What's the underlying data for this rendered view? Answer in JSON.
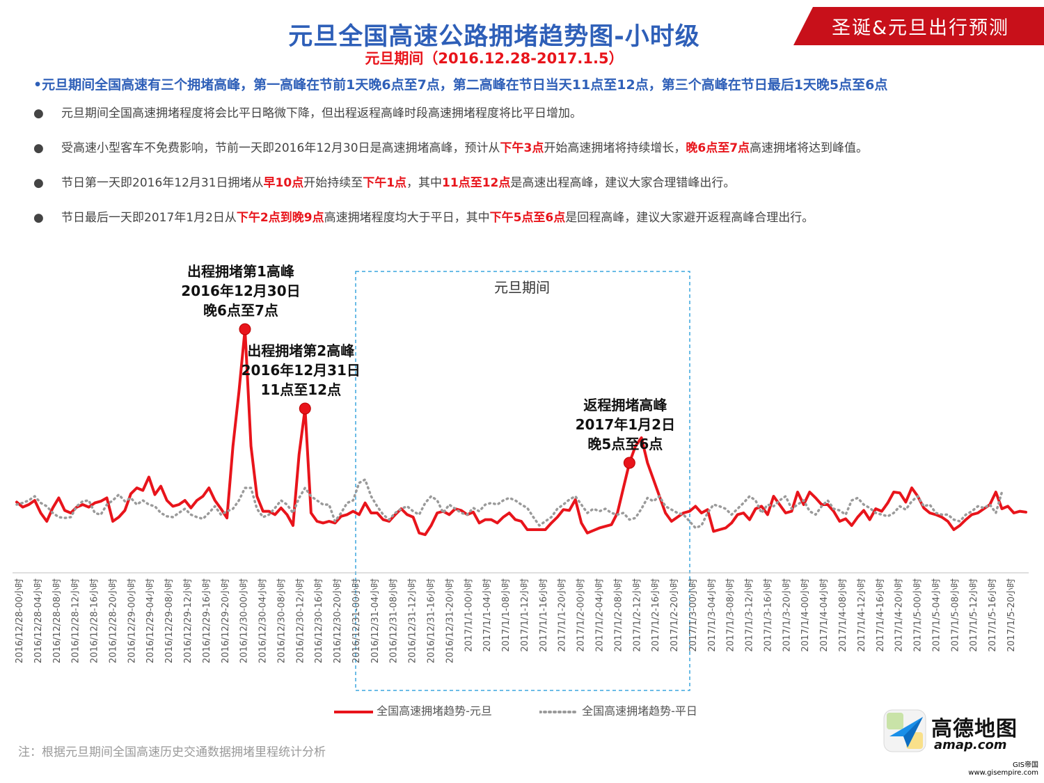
{
  "header": {
    "title": "元旦全国高速公路拥堵趋势图-小时级",
    "subtitle": "元旦期间（2016.12.28-2017.1.5）",
    "banner": "圣诞&元旦出行预测",
    "banner_color": "#c8101a"
  },
  "headline": "•元旦期间全国高速有三个拥堵高峰，第一高峰在节前1天晚6点至7点，第二高峰在节日当天11点至12点，第三个高峰在节日最后1天晚5点至6点",
  "bullets": [
    {
      "dot": "●",
      "segments": [
        {
          "text": "元旦期间全国高速拥堵程度将会比平日略微下降，但出程返程高峰时段高速拥堵程度将比平日增加。",
          "hl": false
        }
      ]
    },
    {
      "dot": "●",
      "segments": [
        {
          "text": "受高速小型客车不免费影响，节前一天即2016年12月30日是高速拥堵高峰，预计从",
          "hl": false
        },
        {
          "text": "下午3点",
          "hl": true
        },
        {
          "text": "开始高速拥堵将持续增长，",
          "hl": false
        },
        {
          "text": "晚6点至7点",
          "hl": true
        },
        {
          "text": "高速拥堵将达到峰值。",
          "hl": false
        }
      ]
    },
    {
      "dot": "●",
      "segments": [
        {
          "text": "节日第一天即2016年12月31日拥堵从",
          "hl": false
        },
        {
          "text": "早10点",
          "hl": true
        },
        {
          "text": "开始持续至",
          "hl": false
        },
        {
          "text": "下午1点",
          "hl": true
        },
        {
          "text": "，其中",
          "hl": false
        },
        {
          "text": "11点至12点",
          "hl": true
        },
        {
          "text": "是高速出程高峰，建议大家合理错峰出行。",
          "hl": false
        }
      ]
    },
    {
      "dot": "●",
      "segments": [
        {
          "text": "节日最后一天即2017年1月2日从",
          "hl": false
        },
        {
          "text": "下午2点到晚9点",
          "hl": true
        },
        {
          "text": "高速拥堵程度均大于平日，其中",
          "hl": false
        },
        {
          "text": "下午5点至6点",
          "hl": true
        },
        {
          "text": "是回程高峰，建议大家避开返程高峰合理出行。",
          "hl": false
        }
      ]
    }
  ],
  "chart_data": {
    "type": "line",
    "x_labels": [
      "2016/12/28-00小时",
      "2016/12/28-04小时",
      "2016/12/28-08小时",
      "2016/12/28-12小时",
      "2016/12/28-16小时",
      "2016/12/28-20小时",
      "2016/12/29-00小时",
      "2016/12/29-04小时",
      "2016/12/29-08小时",
      "2016/12/29-12小时",
      "2016/12/29-16小时",
      "2016/12/29-20小时",
      "2016/12/30-00小时",
      "2016/12/30-04小时",
      "2016/12/30-08小时",
      "2016/12/30-12小时",
      "2016/12/30-16小时",
      "2016/12/30-20小时",
      "2016/12/31-00小时",
      "2016/12/31-04小时",
      "2016/12/31-08小时",
      "2016/12/31-12小时",
      "2016/12/31-16小时",
      "2016/12/31-20小时",
      "2017/1/1-00小时",
      "2017/1/1-04小时",
      "2017/1/1-08小时",
      "2017/1/1-12小时",
      "2017/1/1-16小时",
      "2017/1/1-20小时",
      "2017/1/2-00小时",
      "2017/1/2-04小时",
      "2017/1/2-08小时",
      "2017/1/2-12小时",
      "2017/1/2-16小时",
      "2017/1/2-20小时",
      "2017/1/3-00小时",
      "2017/1/3-04小时",
      "2017/1/3-08小时",
      "2017/1/3-12小时",
      "2017/1/3-16小时",
      "2017/1/3-20小时",
      "2017/1/4-00小时",
      "2017/1/4-04小时",
      "2017/1/4-08小时",
      "2017/1/4-12小时",
      "2017/1/4-16小时",
      "2017/1/4-20小时",
      "2017/1/5-00小时",
      "2017/1/5-04小时",
      "2017/1/5-08小时",
      "2017/1/5-12小时",
      "2017/1/5-16小时",
      "2017/1/5-20小时"
    ],
    "series": [
      {
        "name": "全国高速拥堵趋势-元旦",
        "color": "#e8141b",
        "style": "solid",
        "values": [
          43,
          37,
          40,
          45,
          30,
          20,
          36,
          48,
          33,
          30,
          37,
          40,
          37,
          42,
          44,
          48,
          20,
          25,
          33,
          53,
          60,
          57,
          73,
          52,
          62,
          45,
          38,
          40,
          45,
          36,
          45,
          50,
          60,
          45,
          35,
          24,
          110,
          175,
          250,
          110,
          50,
          32,
          32,
          28,
          36,
          28,
          15,
          100,
          155,
          30,
          20,
          18,
          20,
          18,
          26,
          28,
          32,
          28,
          42,
          30,
          30,
          22,
          20,
          28,
          35,
          28,
          25,
          6,
          4,
          15,
          30,
          32,
          28,
          35,
          33,
          28,
          31,
          18,
          22,
          22,
          18,
          25,
          30,
          22,
          20,
          10,
          10,
          10,
          10,
          18,
          25,
          34,
          33,
          46,
          18,
          6,
          9,
          12,
          14,
          16,
          30,
          60,
          90,
          110,
          120,
          90,
          70,
          50,
          30,
          20,
          25,
          30,
          32,
          38,
          30,
          34,
          8,
          10,
          12,
          18,
          28,
          30,
          22,
          35,
          38,
          28,
          50,
          40,
          30,
          32,
          55,
          40,
          55,
          48,
          40,
          40,
          32,
          20,
          23,
          15,
          25,
          33,
          22,
          35,
          32,
          42,
          55,
          54,
          43,
          60,
          50,
          36,
          30,
          28,
          25,
          20,
          10,
          15,
          22,
          28,
          30,
          35,
          40,
          55,
          35,
          38,
          30,
          32,
          31
        ]
      },
      {
        "name": "全国高速拥堵趋势-平日",
        "color": "#9a9a9a",
        "style": "dotted",
        "values": [
          40,
          42,
          45,
          50,
          42,
          38,
          30,
          25,
          24,
          25,
          38,
          44,
          45,
          30,
          28,
          40,
          45,
          52,
          44,
          48,
          40,
          45,
          40,
          38,
          30,
          26,
          25,
          30,
          35,
          28,
          25,
          23,
          30,
          38,
          28,
          32,
          35,
          45,
          60,
          60,
          35,
          25,
          28,
          36,
          45,
          40,
          30,
          48,
          60,
          50,
          45,
          40,
          40,
          20,
          30,
          42,
          45,
          66,
          70,
          50,
          38,
          28,
          22,
          30,
          35,
          38,
          32,
          28,
          42,
          50,
          45,
          30,
          40,
          35,
          30,
          28,
          36,
          32,
          40,
          42,
          40,
          45,
          48,
          45,
          40,
          36,
          25,
          15,
          20,
          25,
          35,
          40,
          46,
          50,
          40,
          30,
          35,
          32,
          35,
          30,
          28,
          30,
          22,
          24,
          35,
          48,
          44,
          50,
          38,
          34,
          30,
          28,
          20,
          12,
          15,
          30,
          40,
          38,
          35,
          28,
          35,
          42,
          50,
          45,
          30,
          40,
          38,
          45,
          50,
          35,
          40,
          45,
          32,
          28,
          38,
          45,
          35,
          33,
          28,
          45,
          48,
          40,
          36,
          30,
          28,
          26,
          30,
          38,
          34,
          44,
          50,
          38,
          40,
          30,
          28,
          28,
          22,
          20,
          28,
          32,
          38,
          36,
          40,
          30,
          55
        ]
      }
    ],
    "ylim": [
      0,
      300
    ],
    "annotations": [
      {
        "lines": [
          "出程拥堵第1高峰",
          "2016年12月30日",
          "晚6点至7点"
        ],
        "series": 0,
        "index": 38
      },
      {
        "lines": [
          "出程拥堵第2高峰",
          "2016年12月31日",
          "11点至12点"
        ],
        "series": 0,
        "index": 48
      },
      {
        "lines": [
          "返程拥堵高峰",
          "2017年1月2日",
          "晚5点至6点"
        ],
        "series": 0,
        "index": 102
      }
    ],
    "highlight_region": {
      "label": "元旦期间",
      "from": "2016/12/31-00小时",
      "to": "2017/1/2-24小时"
    }
  },
  "footer": {
    "note": "注：根据元旦期间全国高速历史交通数据拥堵里程统计分析",
    "brand_name": "高德地图",
    "brand_url": "amap.com",
    "watermark": "GIS帝国\nwww.gisempire.com"
  }
}
